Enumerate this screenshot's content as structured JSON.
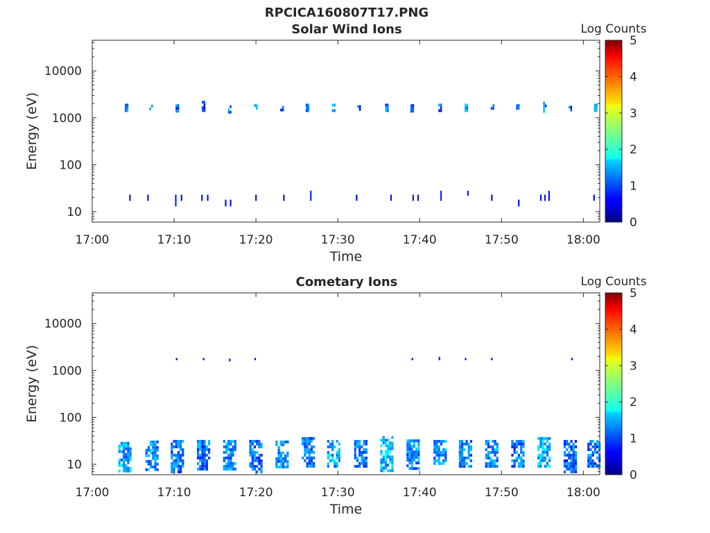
{
  "figure_title": "RPCICA160807T17.PNG",
  "colormap": "jet",
  "chart_data": [
    {
      "type": "heatmap",
      "title": "Solar Wind Ions",
      "xlabel": "Time",
      "ylabel": "Energy (eV)",
      "yscale": "log",
      "xlim": [
        "17:00",
        "18:02"
      ],
      "ylim": [
        6,
        45000
      ],
      "x_ticks": [
        "17:00",
        "17:10",
        "17:20",
        "17:30",
        "17:40",
        "17:50",
        "18:00"
      ],
      "y_ticks": [
        10,
        100,
        1000,
        10000
      ],
      "y_tick_labels": [
        "10",
        "100",
        "1000",
        "10000"
      ],
      "colorbar": {
        "label": "Log Counts",
        "range": [
          0,
          5
        ],
        "ticks": [
          "0",
          "1",
          "2",
          "3",
          "4",
          "5"
        ]
      },
      "bands": [
        {
          "time": "17:04.2",
          "e_min": 1450,
          "e_max": 2000,
          "level": 1.3
        },
        {
          "time": "17:07.2",
          "e_min": 1500,
          "e_max": 1900,
          "level": 1.2
        },
        {
          "time": "17:10.4",
          "e_min": 1450,
          "e_max": 1950,
          "level": 1.1
        },
        {
          "time": "17:13.6",
          "e_min": 1450,
          "e_max": 2300,
          "level": 1.0
        },
        {
          "time": "17:16.8",
          "e_min": 1400,
          "e_max": 1850,
          "level": 1.2
        },
        {
          "time": "17:20.0",
          "e_min": 1450,
          "e_max": 1950,
          "level": 1.5
        },
        {
          "time": "17:23.2",
          "e_min": 1500,
          "e_max": 1800,
          "level": 1.1
        },
        {
          "time": "17:26.3",
          "e_min": 1400,
          "e_max": 2000,
          "level": 1.3
        },
        {
          "time": "17:29.5",
          "e_min": 1350,
          "e_max": 2000,
          "level": 1.2
        },
        {
          "time": "17:32.6",
          "e_min": 1550,
          "e_max": 1850,
          "level": 1.1
        },
        {
          "time": "17:36.0",
          "e_min": 1400,
          "e_max": 2000,
          "level": 1.2
        },
        {
          "time": "17:39.1",
          "e_min": 1450,
          "e_max": 1950,
          "level": 1.0
        },
        {
          "time": "17:42.5",
          "e_min": 1500,
          "e_max": 2000,
          "level": 1.1
        },
        {
          "time": "17:45.7",
          "e_min": 1400,
          "e_max": 2000,
          "level": 1.3
        },
        {
          "time": "17:48.9",
          "e_min": 1500,
          "e_max": 1950,
          "level": 1.2
        },
        {
          "time": "17:52.0",
          "e_min": 1500,
          "e_max": 1950,
          "level": 1.1
        },
        {
          "time": "17:55.3",
          "e_min": 1450,
          "e_max": 2200,
          "level": 1.2
        },
        {
          "time": "17:58.4",
          "e_min": 1500,
          "e_max": 1800,
          "level": 1.1
        },
        {
          "time": "18:01.5",
          "e_min": 1400,
          "e_max": 2000,
          "level": 1.3
        }
      ],
      "spikes": [
        {
          "time": "17:04.6",
          "e_min": 17,
          "e_max": 23,
          "level": 0.7
        },
        {
          "time": "17:06.8",
          "e_min": 17,
          "e_max": 23,
          "level": 0.7
        },
        {
          "time": "17:10.2",
          "e_min": 13,
          "e_max": 23,
          "level": 0.8
        },
        {
          "time": "17:10.9",
          "e_min": 17,
          "e_max": 23,
          "level": 0.7
        },
        {
          "time": "17:13.4",
          "e_min": 17,
          "e_max": 23,
          "level": 0.7
        },
        {
          "time": "17:14.1",
          "e_min": 17,
          "e_max": 23,
          "level": 0.7
        },
        {
          "time": "17:16.3",
          "e_min": 13,
          "e_max": 18,
          "level": 0.7
        },
        {
          "time": "17:16.9",
          "e_min": 13,
          "e_max": 18,
          "level": 0.7
        },
        {
          "time": "17:20.0",
          "e_min": 17,
          "e_max": 23,
          "level": 0.7
        },
        {
          "time": "17:23.4",
          "e_min": 17,
          "e_max": 23,
          "level": 0.7
        },
        {
          "time": "17:26.7",
          "e_min": 17,
          "e_max": 28,
          "level": 0.8
        },
        {
          "time": "17:32.3",
          "e_min": 17,
          "e_max": 23,
          "level": 0.7
        },
        {
          "time": "17:36.5",
          "e_min": 17,
          "e_max": 23,
          "level": 0.7
        },
        {
          "time": "17:39.2",
          "e_min": 17,
          "e_max": 23,
          "level": 0.7
        },
        {
          "time": "17:39.8",
          "e_min": 17,
          "e_max": 23,
          "level": 0.7
        },
        {
          "time": "17:42.6",
          "e_min": 17,
          "e_max": 28,
          "level": 0.8
        },
        {
          "time": "17:45.9",
          "e_min": 22,
          "e_max": 28,
          "level": 0.7
        },
        {
          "time": "17:48.8",
          "e_min": 17,
          "e_max": 23,
          "level": 0.7
        },
        {
          "time": "17:52.1",
          "e_min": 13,
          "e_max": 18,
          "level": 0.7
        },
        {
          "time": "17:54.8",
          "e_min": 17,
          "e_max": 23,
          "level": 0.7
        },
        {
          "time": "17:55.3",
          "e_min": 17,
          "e_max": 23,
          "level": 0.7
        },
        {
          "time": "17:55.8",
          "e_min": 17,
          "e_max": 28,
          "level": 0.7
        },
        {
          "time": "18:01.3",
          "e_min": 17,
          "e_max": 23,
          "level": 0.7
        }
      ]
    },
    {
      "type": "heatmap",
      "title": "Cometary Ions",
      "xlabel": "Time",
      "ylabel": "Energy (eV)",
      "yscale": "log",
      "xlim": [
        "17:00",
        "18:02"
      ],
      "ylim": [
        6,
        45000
      ],
      "x_ticks": [
        "17:00",
        "17:10",
        "17:20",
        "17:30",
        "17:40",
        "17:50",
        "18:00"
      ],
      "y_ticks": [
        10,
        100,
        1000,
        10000
      ],
      "y_tick_labels": [
        "10",
        "100",
        "1000",
        "10000"
      ],
      "colorbar": {
        "label": "Log Counts",
        "range": [
          0,
          5
        ],
        "ticks": [
          "0",
          "1",
          "2",
          "3",
          "4",
          "5"
        ]
      },
      "bands": [
        {
          "time": "17:04.0",
          "e_min": 7,
          "e_max": 30,
          "level": 1.4
        },
        {
          "time": "17:07.3",
          "e_min": 8,
          "e_max": 32,
          "level": 1.3
        },
        {
          "time": "17:10.4",
          "e_min": 7,
          "e_max": 33,
          "level": 1.2
        },
        {
          "time": "17:13.6",
          "e_min": 8,
          "e_max": 33,
          "level": 1.2
        },
        {
          "time": "17:16.8",
          "e_min": 8,
          "e_max": 33,
          "level": 1.3
        },
        {
          "time": "17:20.0",
          "e_min": 7,
          "e_max": 33,
          "level": 1.2
        },
        {
          "time": "17:23.2",
          "e_min": 9,
          "e_max": 32,
          "level": 1.3
        },
        {
          "time": "17:26.4",
          "e_min": 9,
          "e_max": 38,
          "level": 1.2
        },
        {
          "time": "17:29.5",
          "e_min": 9,
          "e_max": 33,
          "level": 1.4
        },
        {
          "time": "17:32.8",
          "e_min": 9,
          "e_max": 33,
          "level": 1.2
        },
        {
          "time": "17:36.0",
          "e_min": 7,
          "e_max": 40,
          "level": 1.5
        },
        {
          "time": "17:39.2",
          "e_min": 8,
          "e_max": 34,
          "level": 1.3
        },
        {
          "time": "17:42.5",
          "e_min": 10,
          "e_max": 33,
          "level": 1.3
        },
        {
          "time": "17:45.6",
          "e_min": 9,
          "e_max": 33,
          "level": 1.2
        },
        {
          "time": "17:48.8",
          "e_min": 9,
          "e_max": 33,
          "level": 1.3
        },
        {
          "time": "17:52.0",
          "e_min": 9,
          "e_max": 33,
          "level": 1.2
        },
        {
          "time": "17:55.2",
          "e_min": 9,
          "e_max": 38,
          "level": 1.5
        },
        {
          "time": "17:58.4",
          "e_min": 7,
          "e_max": 33,
          "level": 1.1
        },
        {
          "time": "18:01.3",
          "e_min": 9,
          "e_max": 33,
          "level": 1.2
        }
      ],
      "spikes": [
        {
          "time": "17:10.3",
          "e_min": 1650,
          "e_max": 1850,
          "level": 0.7
        },
        {
          "time": "17:13.6",
          "e_min": 1650,
          "e_max": 1850,
          "level": 0.7
        },
        {
          "time": "17:16.8",
          "e_min": 1550,
          "e_max": 1800,
          "level": 0.7
        },
        {
          "time": "17:19.9",
          "e_min": 1650,
          "e_max": 1850,
          "level": 0.7
        },
        {
          "time": "17:39.1",
          "e_min": 1650,
          "e_max": 1850,
          "level": 0.7
        },
        {
          "time": "17:42.4",
          "e_min": 1650,
          "e_max": 1950,
          "level": 0.8
        },
        {
          "time": "17:45.6",
          "e_min": 1650,
          "e_max": 1850,
          "level": 0.7
        },
        {
          "time": "17:48.8",
          "e_min": 1650,
          "e_max": 1850,
          "level": 0.7
        },
        {
          "time": "17:58.6",
          "e_min": 1650,
          "e_max": 1850,
          "level": 0.7
        }
      ]
    }
  ]
}
